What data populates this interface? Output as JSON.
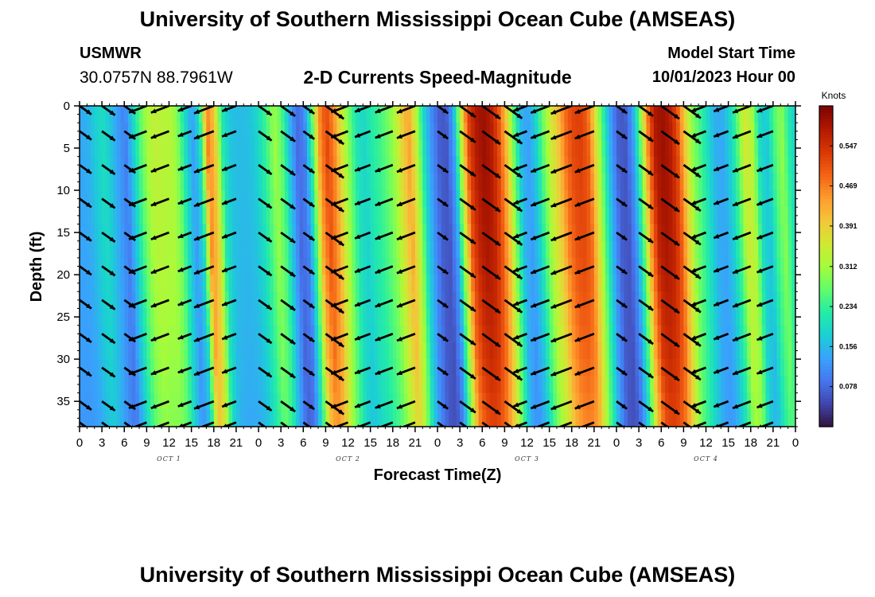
{
  "header": {
    "title": "University of Southern Mississippi Ocean Cube (AMSEAS)",
    "station_id": "USMWR",
    "station_coords": "30.0757N  88.7961W",
    "chart_title": "2-D Currents Speed-Magnitude",
    "model_start_label": "Model Start Time",
    "model_start_value": "10/01/2023 Hour 00"
  },
  "footer": {
    "title": "University of Southern Mississippi Ocean Cube (AMSEAS)"
  },
  "chart_data": {
    "type": "heatmap",
    "title": "2-D Currents Speed-Magnitude",
    "xlabel": "Forecast Time(Z)",
    "ylabel": "Depth (ft)",
    "x_range_hours": [
      0,
      96
    ],
    "y_range_ft": [
      0,
      38
    ],
    "x_tick_hours": [
      0,
      3,
      6,
      9,
      12,
      15,
      18,
      21,
      24,
      27,
      30,
      33,
      36,
      39,
      42,
      45,
      48,
      51,
      54,
      57,
      60,
      63,
      66,
      69,
      72,
      75,
      78,
      81,
      84,
      87,
      90,
      93,
      96
    ],
    "x_tick_labels": [
      "0",
      "3",
      "6",
      "9",
      "12",
      "15",
      "18",
      "21",
      "0",
      "3",
      "6",
      "9",
      "12",
      "15",
      "18",
      "21",
      "0",
      "3",
      "6",
      "9",
      "12",
      "15",
      "18",
      "21",
      "0",
      "3",
      "6",
      "9",
      "12",
      "15",
      "18",
      "21",
      "0"
    ],
    "date_labels": [
      {
        "hour": 12,
        "text": "OCT 1"
      },
      {
        "hour": 36,
        "text": "OCT 2"
      },
      {
        "hour": 60,
        "text": "OCT 3"
      },
      {
        "hour": 84,
        "text": "OCT 4"
      }
    ],
    "y_ticks": [
      0,
      5,
      10,
      15,
      20,
      25,
      30,
      35
    ],
    "y_tick_labels": [
      "0",
      "5",
      "10",
      "15",
      "20",
      "25",
      "30",
      "35"
    ],
    "colorbar": {
      "unit": "Knots",
      "range": [
        0.0,
        0.625
      ],
      "tick_values": [
        0.078,
        0.156,
        0.234,
        0.312,
        0.391,
        0.469,
        0.547
      ],
      "tick_labels": [
        "0.078",
        "0.156",
        "0.234",
        "0.312",
        "0.391",
        "0.469",
        "0.547"
      ],
      "colors": [
        "#30123b",
        "#4145ab",
        "#4675ed",
        "#39a2fc",
        "#1bcfd4",
        "#24eca6",
        "#61fc6c",
        "#a4fc3b",
        "#d1e834",
        "#f3c63a",
        "#fe9b2d",
        "#f36315",
        "#d93806",
        "#b11901",
        "#7a0403"
      ]
    },
    "speed_time_series": {
      "hours": [
        0,
        1,
        2,
        3,
        4,
        5,
        6,
        7,
        8,
        9,
        10,
        11,
        12,
        13,
        14,
        15,
        16,
        17,
        18,
        19,
        20,
        21,
        22,
        23,
        24,
        25,
        26,
        27,
        28,
        29,
        30,
        31,
        32,
        33,
        34,
        35,
        36,
        37,
        38,
        39,
        40,
        41,
        42,
        43,
        44,
        45,
        46,
        47,
        48,
        49,
        50,
        51,
        52,
        53,
        54,
        55,
        56,
        57,
        58,
        59,
        60,
        61,
        62,
        63,
        64,
        65,
        66,
        67,
        68,
        69,
        70,
        71,
        72,
        73,
        74,
        75,
        76,
        77,
        78,
        79,
        80,
        81,
        82,
        83,
        84,
        85,
        86,
        87,
        88,
        89,
        90,
        91,
        92,
        93,
        94,
        95,
        96
      ],
      "surface_speed_kt": [
        0.14,
        0.15,
        0.18,
        0.2,
        0.17,
        0.13,
        0.1,
        0.18,
        0.26,
        0.32,
        0.34,
        0.33,
        0.33,
        0.29,
        0.2,
        0.13,
        0.2,
        0.47,
        0.4,
        0.22,
        0.17,
        0.16,
        0.16,
        0.17,
        0.2,
        0.25,
        0.31,
        0.26,
        0.16,
        0.08,
        0.1,
        0.24,
        0.45,
        0.52,
        0.46,
        0.36,
        0.28,
        0.21,
        0.19,
        0.22,
        0.24,
        0.27,
        0.31,
        0.38,
        0.44,
        0.34,
        0.2,
        0.12,
        0.07,
        0.06,
        0.13,
        0.33,
        0.52,
        0.58,
        0.6,
        0.58,
        0.52,
        0.42,
        0.28,
        0.16,
        0.13,
        0.18,
        0.27,
        0.35,
        0.4,
        0.48,
        0.52,
        0.53,
        0.5,
        0.38,
        0.25,
        0.14,
        0.07,
        0.06,
        0.12,
        0.26,
        0.46,
        0.58,
        0.6,
        0.58,
        0.52,
        0.4,
        0.3,
        0.25,
        0.2,
        0.15,
        0.14,
        0.18,
        0.25,
        0.36,
        0.33,
        0.2,
        0.17,
        0.25,
        0.3,
        0.22,
        0.17
      ]
    },
    "vector_rows_depth_ft": [
      0,
      3,
      7,
      11,
      15,
      19,
      23,
      27,
      31,
      35,
      37.5
    ],
    "vector_column_hours": [
      0,
      3,
      6,
      9,
      12,
      15,
      18,
      21,
      24,
      27,
      30,
      33,
      36,
      39,
      42,
      45,
      48,
      51,
      54,
      57,
      60,
      63,
      66,
      69,
      72,
      75,
      78,
      81,
      84,
      87,
      90,
      93,
      96
    ]
  }
}
